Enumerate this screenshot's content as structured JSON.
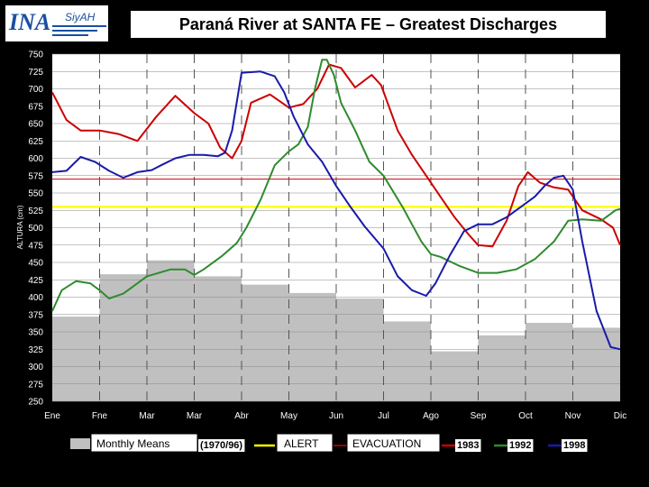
{
  "header": {
    "title": "Paraná River  at  SANTA FE – Greatest  Discharges",
    "logo_main": "INA",
    "logo_secondary": "SiyAH"
  },
  "chart_data": {
    "type": "line",
    "ylabel": "ALTURA (cm)",
    "ylim": [
      250,
      750
    ],
    "yticks": [
      250,
      275,
      300,
      325,
      350,
      375,
      400,
      425,
      450,
      475,
      500,
      525,
      550,
      575,
      600,
      625,
      650,
      675,
      700,
      725,
      750
    ],
    "x_tick_labels": [
      "Ene",
      "Fne",
      "Mar",
      "Mar",
      "Abr",
      "May",
      "Jun",
      "Jul",
      "Ago",
      "Sep",
      "Oct",
      "Nov",
      "Dic"
    ],
    "xlim": [
      0,
      12
    ],
    "monthly_means": {
      "name": "Monthly Means",
      "period": "(1970/96)",
      "values": [
        372,
        433,
        453,
        430,
        418,
        406,
        398,
        365,
        322,
        345,
        363,
        356
      ]
    },
    "alert_level": {
      "name": "ALERT",
      "value": 530,
      "color": "#ffff00"
    },
    "evacuation_level": {
      "name": "EVACUATION",
      "value": 570,
      "color": "#cc0000"
    },
    "series": [
      {
        "name": "1983",
        "color": "#cc0000",
        "x": [
          0,
          0.3,
          0.6,
          1.0,
          1.4,
          1.8,
          2.2,
          2.6,
          3.0,
          3.3,
          3.55,
          3.8,
          4.0,
          4.2,
          4.6,
          5.0,
          5.3,
          5.6,
          5.85,
          6.1,
          6.4,
          6.75,
          6.95,
          7.3,
          7.6,
          7.9,
          8.2,
          8.5,
          8.8,
          9.0,
          9.3,
          9.6,
          9.85,
          10.05,
          10.3,
          10.6,
          10.9,
          11.2,
          11.6,
          11.85,
          12.0
        ],
        "y": [
          695,
          655,
          640,
          640,
          635,
          625,
          660,
          690,
          665,
          650,
          615,
          600,
          625,
          680,
          692,
          673,
          678,
          700,
          735,
          730,
          702,
          720,
          705,
          640,
          605,
          575,
          545,
          515,
          490,
          475,
          473,
          510,
          560,
          580,
          565,
          558,
          555,
          525,
          512,
          500,
          475
        ]
      },
      {
        "name": "1992",
        "color": "#2e8b2e",
        "x": [
          0,
          0.2,
          0.5,
          0.8,
          1.0,
          1.2,
          1.5,
          2.0,
          2.5,
          2.8,
          3.0,
          3.2,
          3.6,
          3.9,
          4.1,
          4.4,
          4.7,
          5.0,
          5.2,
          5.4,
          5.55,
          5.7,
          5.8,
          5.95,
          6.1,
          6.4,
          6.7,
          7.0,
          7.4,
          7.8,
          8.0,
          8.2,
          8.6,
          9.0,
          9.4,
          9.8,
          10.2,
          10.6,
          10.9,
          11.2,
          11.6,
          11.9,
          12.0
        ],
        "y": [
          380,
          410,
          423,
          420,
          410,
          398,
          405,
          430,
          440,
          440,
          432,
          440,
          460,
          478,
          500,
          540,
          590,
          610,
          620,
          645,
          700,
          742,
          742,
          720,
          680,
          640,
          595,
          575,
          530,
          480,
          462,
          458,
          445,
          435,
          435,
          440,
          455,
          480,
          510,
          512,
          510,
          525,
          527
        ]
      },
      {
        "name": "1998",
        "color": "#1a1aaa",
        "x": [
          0,
          0.3,
          0.6,
          0.9,
          1.2,
          1.5,
          1.8,
          2.1,
          2.3,
          2.6,
          2.9,
          3.2,
          3.5,
          3.65,
          3.8,
          4.0,
          4.4,
          4.7,
          4.9,
          5.1,
          5.4,
          5.7,
          6.0,
          6.3,
          6.6,
          7.0,
          7.3,
          7.6,
          7.9,
          8.1,
          8.4,
          8.7,
          9.0,
          9.3,
          9.6,
          9.9,
          10.2,
          10.4,
          10.6,
          10.8,
          11.0,
          11.2,
          11.5,
          11.8,
          12.0
        ],
        "y": [
          580,
          582,
          602,
          595,
          582,
          572,
          580,
          583,
          590,
          600,
          605,
          605,
          603,
          608,
          640,
          723,
          725,
          718,
          695,
          660,
          620,
          595,
          560,
          530,
          502,
          470,
          430,
          410,
          402,
          420,
          460,
          495,
          505,
          505,
          515,
          530,
          545,
          560,
          572,
          575,
          555,
          480,
          380,
          328,
          325
        ]
      }
    ],
    "legend_position": "bottom"
  }
}
